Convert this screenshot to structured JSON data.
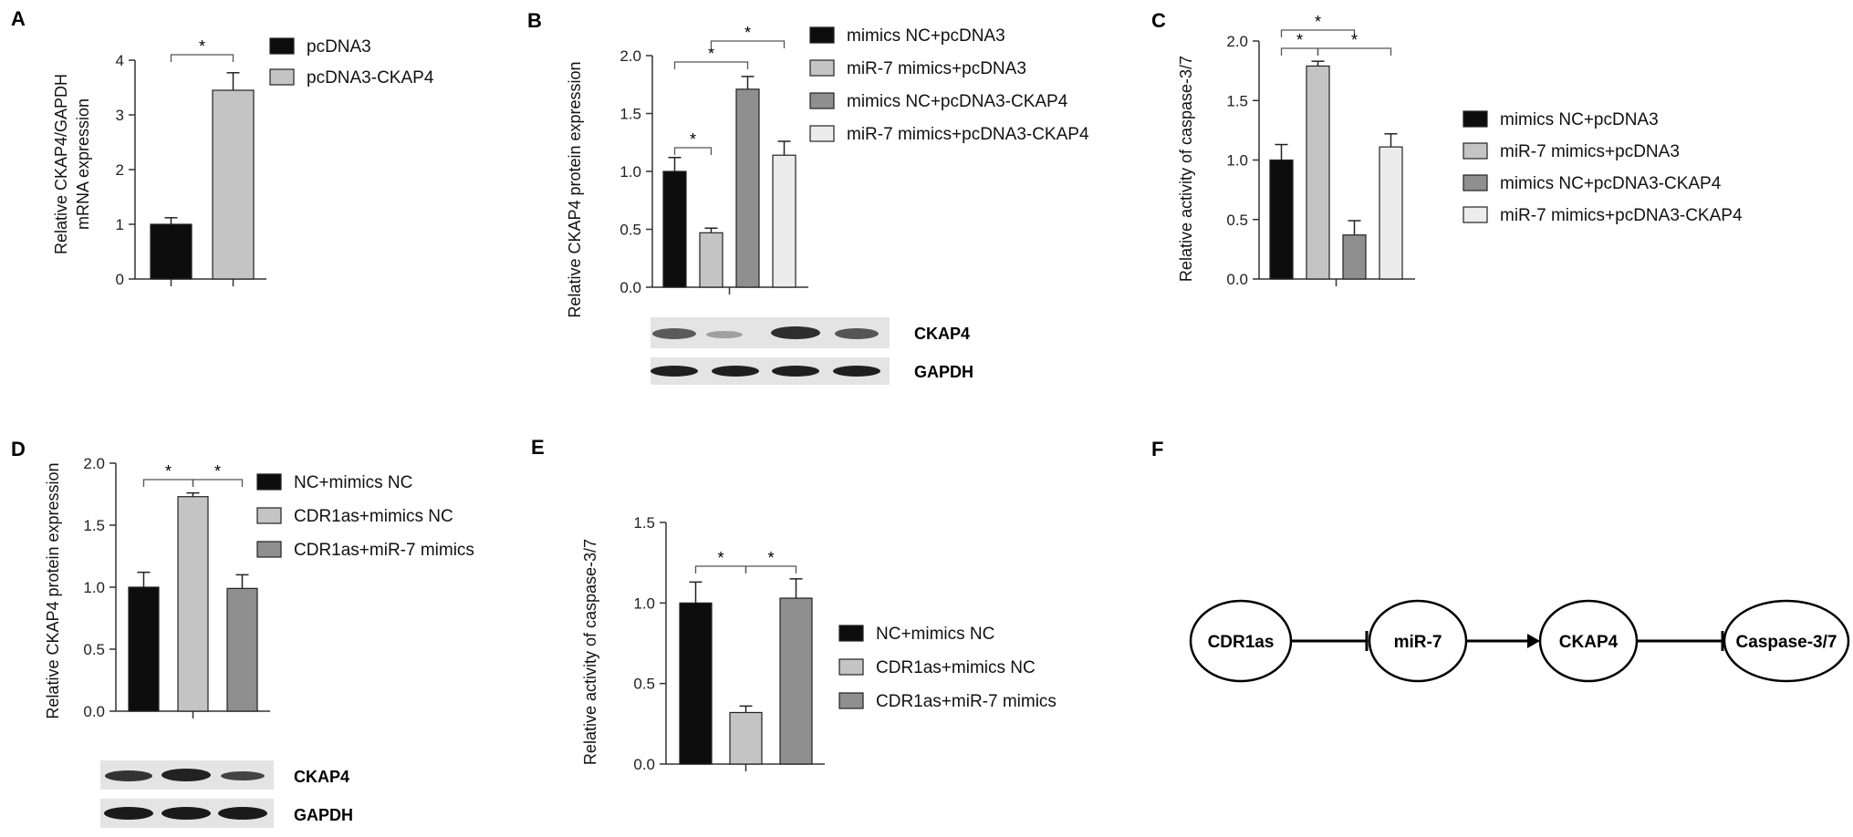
{
  "colors": {
    "black": "#0d0d0d",
    "light_gray": "#c4c4c4",
    "mid_gray": "#8f8f8f",
    "pale": "#ececec",
    "axis": "#333333"
  },
  "chart_data": [
    {
      "panel": "A",
      "type": "bar",
      "ylabel": "Relative CKAP4/GAPDH mRNA expression",
      "ylim": [
        0,
        4
      ],
      "yticks": [
        "0",
        "1",
        "2",
        "3",
        "4"
      ],
      "series": [
        {
          "name": "pcDNA3",
          "value": 1.0,
          "error": 0.12,
          "color": "black"
        },
        {
          "name": "pcDNA3-CKAP4",
          "value": 3.45,
          "error": 0.32,
          "color": "light_gray"
        }
      ],
      "significance": [
        {
          "from": 0,
          "to": 1,
          "label": "*"
        }
      ],
      "legend": "right"
    },
    {
      "panel": "B",
      "type": "bar",
      "ylabel": "Relative CKAP4 protein expression",
      "ylim": [
        0,
        2.0
      ],
      "yticks": [
        "0.0",
        "0.5",
        "1.0",
        "1.5",
        "2.0"
      ],
      "series": [
        {
          "name": "mimics NC+pcDNA3",
          "value": 1.0,
          "error": 0.12,
          "color": "black"
        },
        {
          "name": "miR-7 mimics+pcDNA3",
          "value": 0.47,
          "error": 0.04,
          "color": "light_gray"
        },
        {
          "name": "mimics NC+pcDNA3-CKAP4",
          "value": 1.71,
          "error": 0.11,
          "color": "mid_gray"
        },
        {
          "name": "miR-7 mimics+pcDNA3-CKAP4",
          "value": 1.14,
          "error": 0.12,
          "color": "pale"
        }
      ],
      "significance": [
        {
          "from": 0,
          "to": 1,
          "label": "*"
        },
        {
          "from": 0,
          "to": 2,
          "label": "*"
        },
        {
          "from": 1,
          "to": 3,
          "label": "*"
        }
      ],
      "blot_labels": [
        "CKAP4",
        "GAPDH"
      ],
      "legend": "right"
    },
    {
      "panel": "C",
      "type": "bar",
      "ylabel": "Relative activity of caspase-3/7",
      "ylim": [
        0,
        2.0
      ],
      "yticks": [
        "0.0",
        "0.5",
        "1.0",
        "1.5",
        "2.0"
      ],
      "series": [
        {
          "name": "mimics NC+pcDNA3",
          "value": 1.0,
          "error": 0.13,
          "color": "black"
        },
        {
          "name": "miR-7 mimics+pcDNA3",
          "value": 1.79,
          "error": 0.04,
          "color": "light_gray"
        },
        {
          "name": "mimics NC+pcDNA3-CKAP4",
          "value": 0.37,
          "error": 0.12,
          "color": "mid_gray"
        },
        {
          "name": "miR-7 mimics+pcDNA3-CKAP4",
          "value": 1.11,
          "error": 0.11,
          "color": "pale"
        }
      ],
      "significance": [
        {
          "from": 0,
          "to": 1,
          "label": "*"
        },
        {
          "from": 0,
          "to": 2,
          "label": "*"
        },
        {
          "from": 1,
          "to": 3,
          "label": "*"
        }
      ],
      "legend": "right"
    },
    {
      "panel": "D",
      "type": "bar",
      "ylabel": "Relative CKAP4 protein expression",
      "ylim": [
        0,
        2.0
      ],
      "yticks": [
        "0.0",
        "0.5",
        "1.0",
        "1.5",
        "2.0"
      ],
      "series": [
        {
          "name": "NC+mimics NC",
          "value": 1.0,
          "error": 0.12,
          "color": "black"
        },
        {
          "name": "CDR1as+mimics NC",
          "value": 1.73,
          "error": 0.03,
          "color": "light_gray"
        },
        {
          "name": "CDR1as+miR-7 mimics",
          "value": 0.99,
          "error": 0.11,
          "color": "mid_gray"
        }
      ],
      "significance": [
        {
          "from": 0,
          "to": 1,
          "label": "*"
        },
        {
          "from": 1,
          "to": 2,
          "label": "*"
        }
      ],
      "blot_labels": [
        "CKAP4",
        "GAPDH"
      ],
      "legend": "right"
    },
    {
      "panel": "E",
      "type": "bar",
      "ylabel": "Relative activity of caspase-3/7",
      "ylim": [
        0,
        1.5
      ],
      "yticks": [
        "0.0",
        "0.5",
        "1.0",
        "1.5"
      ],
      "series": [
        {
          "name": "NC+mimics NC",
          "value": 1.0,
          "error": 0.13,
          "color": "black"
        },
        {
          "name": "CDR1as+mimics NC",
          "value": 0.32,
          "error": 0.04,
          "color": "light_gray"
        },
        {
          "name": "CDR1as+miR-7 mimics",
          "value": 1.03,
          "error": 0.12,
          "color": "mid_gray"
        }
      ],
      "significance": [
        {
          "from": 0,
          "to": 1,
          "label": "*"
        },
        {
          "from": 1,
          "to": 2,
          "label": "*"
        }
      ],
      "legend": "right"
    }
  ],
  "diagram": {
    "panel": "F",
    "nodes": [
      "CDR1as",
      "miR-7",
      "CKAP4",
      "Caspase-3/7"
    ],
    "edges": [
      {
        "from": 0,
        "to": 1,
        "kind": "inhibit"
      },
      {
        "from": 1,
        "to": 2,
        "kind": "activate"
      },
      {
        "from": 2,
        "to": 3,
        "kind": "inhibit"
      }
    ]
  }
}
